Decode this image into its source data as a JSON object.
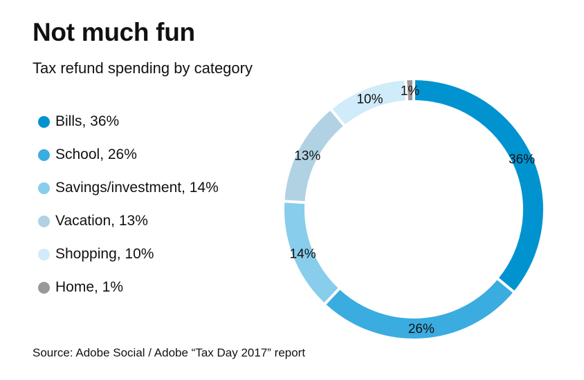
{
  "chart_data": {
    "type": "pie",
    "variant": "donut",
    "title": "Not much fun",
    "subtitle": "Tax refund spending by category",
    "source": "Source: Adobe Social / Adobe “Tax Day 2017” report",
    "legend_position": "left",
    "slices": [
      {
        "name": "Bills",
        "value": 36,
        "label": "36%",
        "legend": "Bills, 36%",
        "color": "#0093d0"
      },
      {
        "name": "School",
        "value": 26,
        "label": "26%",
        "legend": "School, 26%",
        "color": "#3aacdf"
      },
      {
        "name": "Savings/investment",
        "value": 14,
        "label": "14%",
        "legend": "Savings/investment, 14%",
        "color": "#88cdeb"
      },
      {
        "name": "Vacation",
        "value": 13,
        "label": "13%",
        "legend": "Vacation, 13%",
        "color": "#b0d2e3"
      },
      {
        "name": "Shopping",
        "value": 10,
        "label": "10%",
        "legend": "Shopping, 10%",
        "color": "#d0ebfa"
      },
      {
        "name": "Home",
        "value": 1,
        "label": "1%",
        "legend": "Home, 1%",
        "color": "#999999"
      }
    ]
  }
}
